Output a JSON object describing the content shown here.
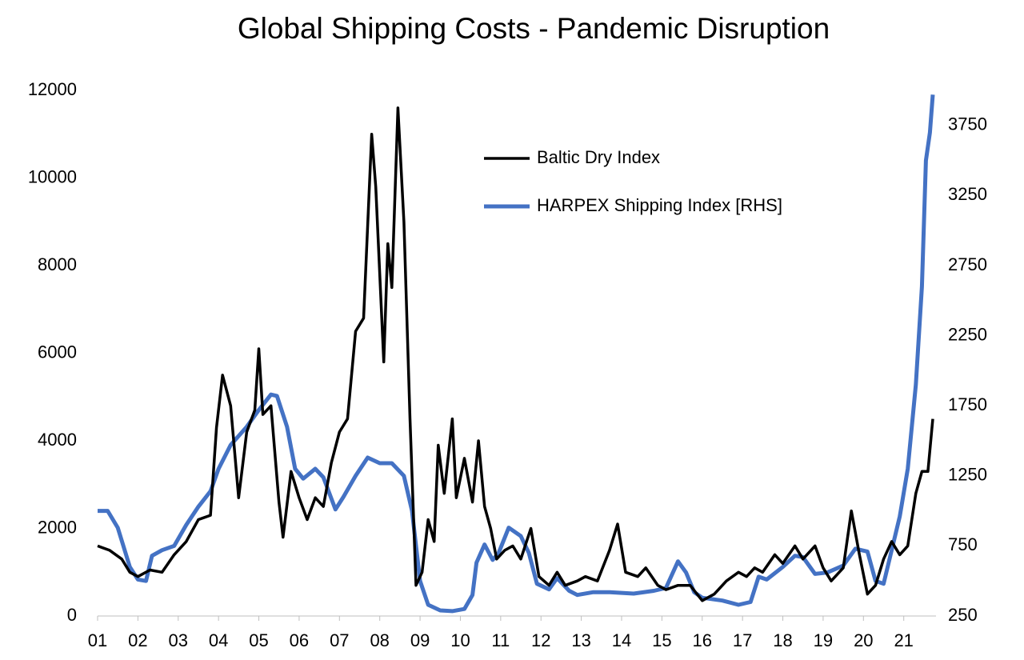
{
  "chart_data": {
    "type": "line",
    "title": "Global Shipping Costs - Pandemic Disruption",
    "xlim": [
      1,
      21.8
    ],
    "xticks": [
      {
        "value": 1,
        "label": "01"
      },
      {
        "value": 2,
        "label": "02"
      },
      {
        "value": 3,
        "label": "03"
      },
      {
        "value": 4,
        "label": "04"
      },
      {
        "value": 5,
        "label": "05"
      },
      {
        "value": 6,
        "label": "06"
      },
      {
        "value": 7,
        "label": "07"
      },
      {
        "value": 8,
        "label": "08"
      },
      {
        "value": 9,
        "label": "09"
      },
      {
        "value": 10,
        "label": "10"
      },
      {
        "value": 11,
        "label": "11"
      },
      {
        "value": 12,
        "label": "12"
      },
      {
        "value": 13,
        "label": "13"
      },
      {
        "value": 14,
        "label": "14"
      },
      {
        "value": 15,
        "label": "15"
      },
      {
        "value": 16,
        "label": "16"
      },
      {
        "value": 17,
        "label": "17"
      },
      {
        "value": 18,
        "label": "18"
      },
      {
        "value": 19,
        "label": "19"
      },
      {
        "value": 20,
        "label": "20"
      },
      {
        "value": 21,
        "label": "21"
      }
    ],
    "ylim": [
      0,
      12000
    ],
    "yticks": [
      0,
      2000,
      4000,
      6000,
      8000,
      10000,
      12000
    ],
    "y2lim": [
      250,
      4000
    ],
    "y2ticks": [
      250,
      750,
      1250,
      1750,
      2250,
      2750,
      3250,
      3750
    ],
    "series": [
      {
        "name": "Baltic Dry Index",
        "color": "#000000",
        "x": [
          1.0,
          1.3,
          1.6,
          1.8,
          2.0,
          2.3,
          2.6,
          2.9,
          3.2,
          3.5,
          3.8,
          3.95,
          4.1,
          4.3,
          4.5,
          4.7,
          4.9,
          5.0,
          5.1,
          5.3,
          5.5,
          5.6,
          5.8,
          6.0,
          6.2,
          6.4,
          6.6,
          6.8,
          7.0,
          7.2,
          7.4,
          7.6,
          7.8,
          7.9,
          8.1,
          8.2,
          8.3,
          8.45,
          8.6,
          8.75,
          8.9,
          9.05,
          9.2,
          9.35,
          9.45,
          9.6,
          9.8,
          9.9,
          10.1,
          10.3,
          10.45,
          10.6,
          10.75,
          10.9,
          11.1,
          11.3,
          11.5,
          11.75,
          11.95,
          12.2,
          12.4,
          12.6,
          12.9,
          13.1,
          13.4,
          13.7,
          13.9,
          14.1,
          14.4,
          14.6,
          14.9,
          15.1,
          15.4,
          15.7,
          16.0,
          16.3,
          16.6,
          16.9,
          17.1,
          17.3,
          17.5,
          17.8,
          18.0,
          18.3,
          18.5,
          18.8,
          19.0,
          19.2,
          19.5,
          19.7,
          19.9,
          20.1,
          20.3,
          20.5,
          20.7,
          20.9,
          21.1,
          21.3,
          21.45,
          21.6,
          21.72
        ],
        "values": [
          1600,
          1500,
          1300,
          1000,
          900,
          1050,
          1000,
          1400,
          1700,
          2200,
          2300,
          4300,
          5500,
          4800,
          2700,
          4200,
          4700,
          6100,
          4600,
          4800,
          2600,
          1800,
          3300,
          2700,
          2200,
          2700,
          2500,
          3500,
          4200,
          4500,
          6500,
          6800,
          11000,
          9800,
          5800,
          8500,
          7500,
          11600,
          9000,
          4500,
          700,
          1000,
          2200,
          1700,
          3900,
          2800,
          4500,
          2700,
          3600,
          2600,
          4000,
          2500,
          2000,
          1300,
          1500,
          1600,
          1300,
          2000,
          900,
          700,
          1000,
          700,
          800,
          900,
          800,
          1500,
          2100,
          1000,
          900,
          1100,
          700,
          600,
          700,
          700,
          350,
          500,
          800,
          1000,
          900,
          1100,
          1000,
          1400,
          1200,
          1600,
          1300,
          1600,
          1100,
          800,
          1100,
          2400,
          1400,
          500,
          700,
          1300,
          1700,
          1400,
          1600,
          2800,
          3300,
          3300,
          4500
        ]
      },
      {
        "name": "HARPEX Shipping Index [RHS]",
        "color": "#4472c4",
        "axis": "y2",
        "x": [
          1.0,
          1.25,
          1.5,
          1.8,
          2.0,
          2.2,
          2.35,
          2.6,
          2.9,
          3.2,
          3.5,
          3.8,
          4.0,
          4.3,
          4.7,
          5.0,
          5.3,
          5.45,
          5.7,
          5.9,
          6.1,
          6.4,
          6.6,
          6.9,
          7.1,
          7.4,
          7.7,
          8.0,
          8.3,
          8.6,
          8.8,
          9.0,
          9.2,
          9.5,
          9.8,
          10.1,
          10.3,
          10.4,
          10.6,
          10.8,
          10.95,
          11.2,
          11.5,
          11.7,
          11.9,
          12.2,
          12.4,
          12.7,
          12.9,
          13.3,
          13.7,
          14.3,
          14.8,
          15.1,
          15.4,
          15.6,
          15.8,
          16.0,
          16.5,
          16.9,
          17.2,
          17.4,
          17.6,
          18.0,
          18.3,
          18.5,
          18.8,
          19.1,
          19.5,
          19.8,
          20.1,
          20.3,
          20.5,
          20.7,
          20.9,
          21.1,
          21.3,
          21.45,
          21.55,
          21.65,
          21.72
        ],
        "values": [
          1000,
          1000,
          880,
          600,
          510,
          500,
          680,
          720,
          750,
          900,
          1030,
          1140,
          1300,
          1470,
          1600,
          1720,
          1830,
          1820,
          1600,
          1300,
          1230,
          1300,
          1240,
          1010,
          1100,
          1250,
          1380,
          1340,
          1340,
          1250,
          1000,
          500,
          330,
          290,
          285,
          300,
          400,
          630,
          760,
          650,
          700,
          880,
          820,
          700,
          480,
          440,
          520,
          430,
          400,
          420,
          420,
          410,
          430,
          450,
          640,
          560,
          420,
          380,
          360,
          330,
          350,
          530,
          510,
          600,
          680,
          670,
          550,
          560,
          610,
          730,
          710,
          500,
          480,
          720,
          960,
          1300,
          1900,
          2600,
          3500,
          3700,
          3970
        ]
      }
    ]
  }
}
